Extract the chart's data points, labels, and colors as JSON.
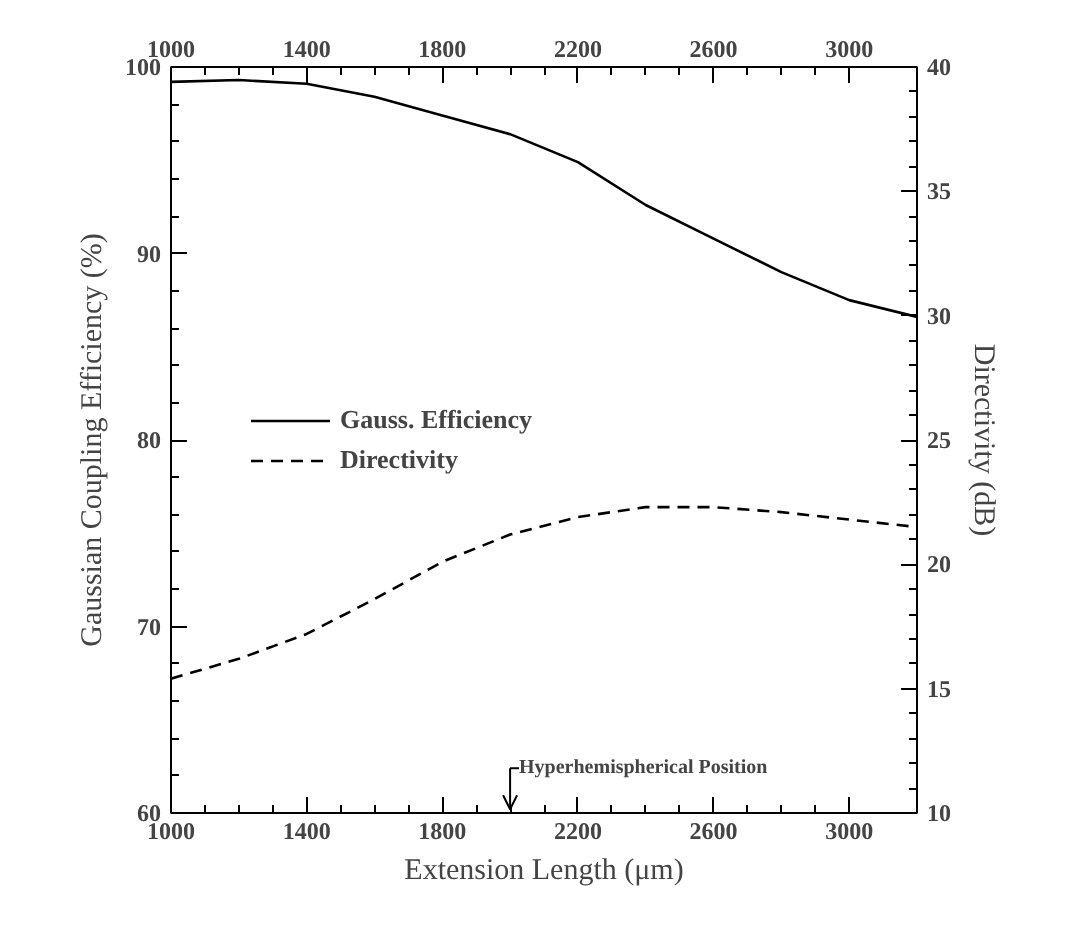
{
  "chart_data": {
    "type": "line",
    "xlabel": "Extension Length (μm)",
    "ylabel": "Gaussian Coupling Efficiency (%)",
    "y2label": "Directivity (dB)",
    "x": [
      1000,
      1200,
      1400,
      1600,
      1800,
      2000,
      2200,
      2400,
      2600,
      2800,
      3000,
      3200
    ],
    "series": [
      {
        "name": "Gauss. Efficiency",
        "color": "#000000",
        "line_style": "solid",
        "values": [
          99.2,
          99.3,
          99.1,
          98.4,
          97.4,
          96.4,
          94.9,
          92.6,
          90.8,
          89.0,
          87.5,
          86.6
        ]
      },
      {
        "name": "Directivity",
        "color": "#000000",
        "line_style": "dashed",
        "axis": "y2",
        "values": [
          15.4,
          16.2,
          17.2,
          18.6,
          20.1,
          21.2,
          21.9,
          22.3,
          22.3,
          22.1,
          21.8,
          21.5
        ]
      }
    ],
    "xlim": [
      1000,
      3200
    ],
    "xticks": [
      1000,
      1400,
      1800,
      2200,
      2600,
      3000
    ],
    "x2lim": [
      1000,
      3200
    ],
    "x2ticks": [
      1000,
      1400,
      1800,
      2200,
      2600,
      3000
    ],
    "ylim": [
      60,
      100
    ],
    "yticks": [
      60,
      70,
      80,
      90,
      100
    ],
    "y2lim": [
      10,
      40
    ],
    "y2ticks": [
      10,
      15,
      20,
      25,
      30,
      35,
      40
    ],
    "ref_lines": [
      {
        "axis": "x",
        "value": 2000,
        "label": "Hyperhemispherical Position"
      }
    ],
    "legend": "left",
    "grid": false
  }
}
